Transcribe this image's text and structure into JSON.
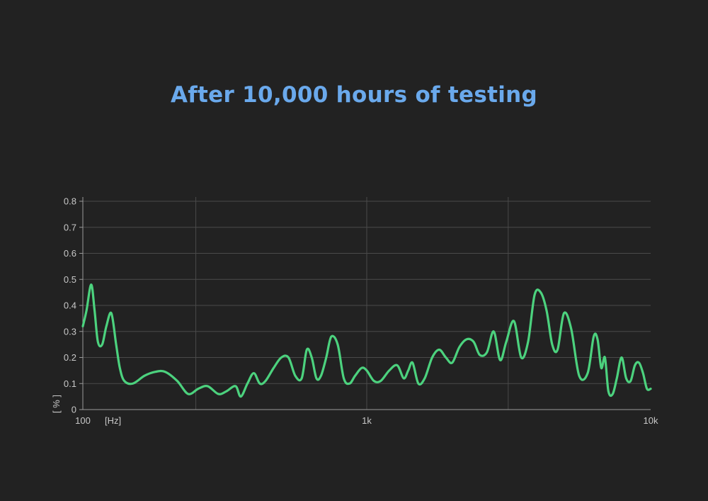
{
  "colors": {
    "background": "#222222",
    "title": "#6aa9ec",
    "line": "#4cd27e",
    "grid": "#4a4a4a",
    "axis": "#9a9a9a",
    "tick_text": "#c8c8c8"
  },
  "chart_data": {
    "type": "line",
    "title": "After 10,000 hours of testing",
    "xlabel": "[Hz]",
    "ylabel": "[ % ]",
    "x_scale": "log",
    "xlim": [
      100,
      10000
    ],
    "ylim": [
      0,
      0.8
    ],
    "grid": true,
    "legend": "none",
    "x_ticks": [
      {
        "value": 100,
        "label": "100"
      },
      {
        "value": 1000,
        "label": "1k"
      },
      {
        "value": 10000,
        "label": "10k"
      }
    ],
    "x_gridlines": [
      250,
      1000,
      3150
    ],
    "y_ticks": [
      {
        "value": 0,
        "label": "0"
      },
      {
        "value": 0.1,
        "label": "0.1"
      },
      {
        "value": 0.2,
        "label": "0.2"
      },
      {
        "value": 0.3,
        "label": "0.3"
      },
      {
        "value": 0.4,
        "label": "0.4"
      },
      {
        "value": 0.5,
        "label": "0.5"
      },
      {
        "value": 0.6,
        "label": "0.6"
      },
      {
        "value": 0.7,
        "label": "0.7"
      },
      {
        "value": 0.8,
        "label": "0.8"
      }
    ],
    "series": [
      {
        "x": [
          100,
          103,
          107,
          110,
          113,
          117,
          121,
          126,
          131,
          135,
          140,
          150,
          165,
          180,
          195,
          215,
          235,
          255,
          275,
          300,
          320,
          345,
          360,
          380,
          400,
          420,
          440,
          470,
          500,
          530,
          560,
          590,
          615,
          640,
          665,
          690,
          720,
          750,
          790,
          830,
          870,
          910,
          960,
          1000,
          1060,
          1120,
          1200,
          1280,
          1350,
          1400,
          1450,
          1520,
          1600,
          1700,
          1800,
          1900,
          2000,
          2120,
          2250,
          2380,
          2500,
          2650,
          2800,
          2950,
          3100,
          3300,
          3500,
          3700,
          3900,
          4100,
          4300,
          4500,
          4700,
          4950,
          5250,
          5600,
          6000,
          6300,
          6500,
          6700,
          6900,
          7100,
          7350,
          7600,
          7900,
          8200,
          8500,
          8800,
          9100,
          9400,
          9700,
          10000
        ],
        "y": [
          0.32,
          0.38,
          0.48,
          0.38,
          0.26,
          0.25,
          0.32,
          0.37,
          0.25,
          0.16,
          0.11,
          0.1,
          0.13,
          0.145,
          0.145,
          0.11,
          0.06,
          0.08,
          0.09,
          0.06,
          0.07,
          0.09,
          0.05,
          0.1,
          0.14,
          0.1,
          0.11,
          0.16,
          0.2,
          0.2,
          0.13,
          0.12,
          0.23,
          0.2,
          0.12,
          0.13,
          0.2,
          0.28,
          0.25,
          0.12,
          0.1,
          0.13,
          0.16,
          0.15,
          0.11,
          0.11,
          0.15,
          0.17,
          0.12,
          0.15,
          0.18,
          0.1,
          0.12,
          0.2,
          0.23,
          0.2,
          0.18,
          0.24,
          0.27,
          0.26,
          0.21,
          0.22,
          0.3,
          0.19,
          0.26,
          0.34,
          0.2,
          0.26,
          0.44,
          0.45,
          0.38,
          0.25,
          0.23,
          0.37,
          0.31,
          0.13,
          0.14,
          0.28,
          0.27,
          0.16,
          0.2,
          0.07,
          0.06,
          0.12,
          0.2,
          0.12,
          0.11,
          0.17,
          0.18,
          0.14,
          0.08,
          0.08
        ]
      }
    ]
  }
}
